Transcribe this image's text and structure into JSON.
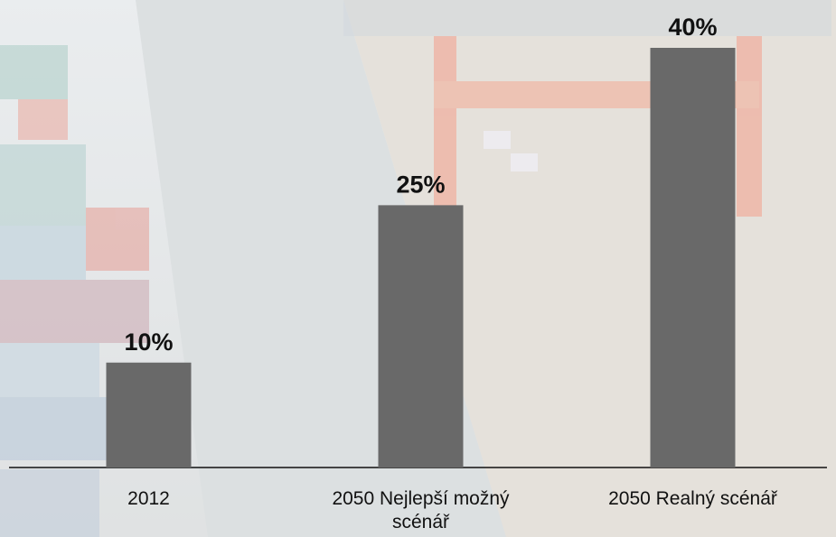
{
  "chart_data": {
    "type": "bar",
    "categories": [
      "2012",
      "2050 Nejlepší možný scénář",
      "2050 Realný scénář"
    ],
    "values": [
      10,
      25,
      40
    ],
    "value_labels": [
      "10%",
      "25%",
      "40%"
    ],
    "color": "#696969"
  }
}
